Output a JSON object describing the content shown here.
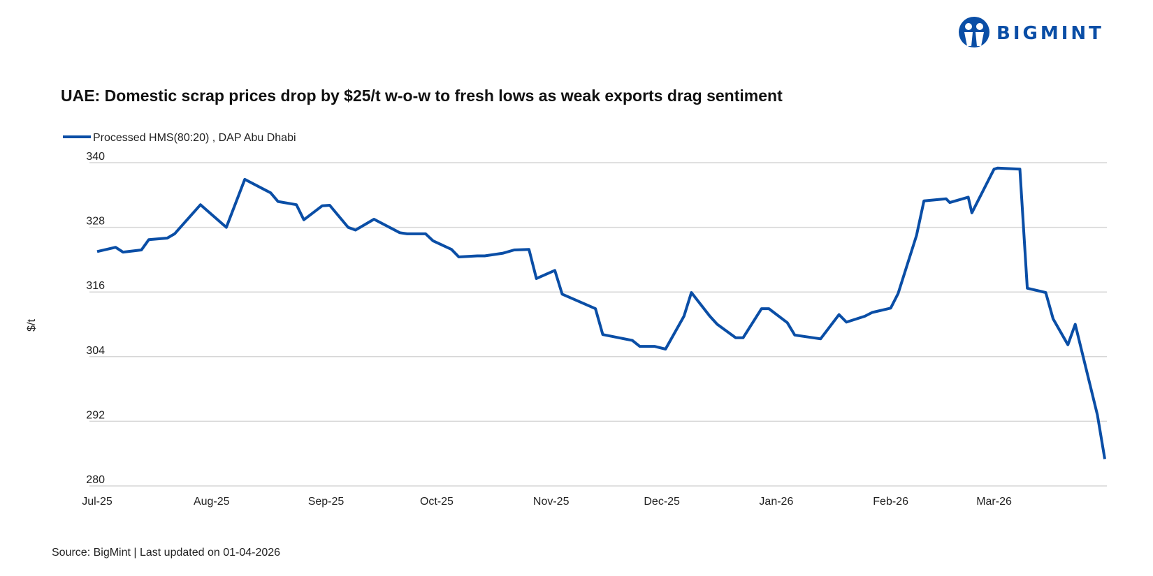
{
  "logo": {
    "text": "BIGMINT",
    "color": "#0a4ea6"
  },
  "chart_data": {
    "type": "line",
    "title": "UAE: Domestic scrap prices drop by $25/t w-o-w to fresh lows as weak exports drag sentiment",
    "ylabel": "$/t",
    "xlabel": "",
    "ylim": [
      280,
      340
    ],
    "yticks": [
      280,
      292,
      304,
      316,
      328,
      340
    ],
    "xlim": [
      "2025-07-01",
      "2026-03-31"
    ],
    "xticks": [
      {
        "date": "2025-07-01",
        "label": "Jul-25"
      },
      {
        "date": "2025-08-01",
        "label": "Aug-25"
      },
      {
        "date": "2025-09-01",
        "label": "Sep-25"
      },
      {
        "date": "2025-10-01",
        "label": "Oct-25"
      },
      {
        "date": "2025-11-01",
        "label": "Nov-25"
      },
      {
        "date": "2025-12-01",
        "label": "Dec-25"
      },
      {
        "date": "2026-01-01",
        "label": "Jan-26"
      },
      {
        "date": "2026-02-01",
        "label": "Feb-26"
      },
      {
        "date": "2026-03-01",
        "label": "Mar-26"
      }
    ],
    "grid": "horizontal",
    "legend_position": "top-left",
    "series": [
      {
        "name": "Processed HMS(80:20) , DAP Abu Dhabi",
        "color": "#0a4ea6",
        "points": [
          [
            "2025-07-01",
            323.5
          ],
          [
            "2025-07-06",
            324.3
          ],
          [
            "2025-07-08",
            323.4
          ],
          [
            "2025-07-13",
            323.8
          ],
          [
            "2025-07-15",
            325.7
          ],
          [
            "2025-07-20",
            326.0
          ],
          [
            "2025-07-22",
            326.8
          ],
          [
            "2025-07-29",
            332.2
          ],
          [
            "2025-08-05",
            328.0
          ],
          [
            "2025-08-10",
            336.9
          ],
          [
            "2025-08-17",
            334.4
          ],
          [
            "2025-08-19",
            332.8
          ],
          [
            "2025-08-24",
            332.2
          ],
          [
            "2025-08-26",
            329.4
          ],
          [
            "2025-08-31",
            332.0
          ],
          [
            "2025-09-02",
            332.1
          ],
          [
            "2025-09-07",
            328.0
          ],
          [
            "2025-09-09",
            327.5
          ],
          [
            "2025-09-14",
            329.5
          ],
          [
            "2025-09-21",
            327.0
          ],
          [
            "2025-09-23",
            326.8
          ],
          [
            "2025-09-28",
            326.8
          ],
          [
            "2025-09-30",
            325.5
          ],
          [
            "2025-10-05",
            323.9
          ],
          [
            "2025-10-07",
            322.5
          ],
          [
            "2025-10-12",
            322.7
          ],
          [
            "2025-10-14",
            322.7
          ],
          [
            "2025-10-19",
            323.2
          ],
          [
            "2025-10-22",
            323.8
          ],
          [
            "2025-10-26",
            323.9
          ],
          [
            "2025-10-28",
            318.5
          ],
          [
            "2025-11-02",
            320.0
          ],
          [
            "2025-11-04",
            315.6
          ],
          [
            "2025-11-13",
            312.9
          ],
          [
            "2025-11-15",
            308.1
          ],
          [
            "2025-11-23",
            307.0
          ],
          [
            "2025-11-25",
            305.9
          ],
          [
            "2025-11-29",
            305.9
          ],
          [
            "2025-12-02",
            305.4
          ],
          [
            "2025-12-07",
            311.5
          ],
          [
            "2025-12-09",
            315.9
          ],
          [
            "2025-12-14",
            311.5
          ],
          [
            "2025-12-16",
            310.0
          ],
          [
            "2025-12-21",
            307.5
          ],
          [
            "2025-12-23",
            307.5
          ],
          [
            "2025-12-28",
            312.9
          ],
          [
            "2025-12-30",
            312.9
          ],
          [
            "2026-01-04",
            310.3
          ],
          [
            "2026-01-06",
            308.0
          ],
          [
            "2026-01-13",
            307.3
          ],
          [
            "2026-01-18",
            311.8
          ],
          [
            "2026-01-20",
            310.4
          ],
          [
            "2026-01-25",
            311.5
          ],
          [
            "2026-01-27",
            312.2
          ],
          [
            "2026-02-01",
            313.0
          ],
          [
            "2026-02-03",
            315.7
          ],
          [
            "2026-02-08",
            326.5
          ],
          [
            "2026-02-10",
            332.9
          ],
          [
            "2026-02-16",
            333.3
          ],
          [
            "2026-02-17",
            332.6
          ],
          [
            "2026-02-22",
            333.6
          ],
          [
            "2026-02-23",
            330.7
          ],
          [
            "2026-03-01",
            338.8
          ],
          [
            "2026-03-02",
            339.0
          ],
          [
            "2026-03-08",
            338.8
          ],
          [
            "2026-03-10",
            316.7
          ],
          [
            "2026-03-15",
            315.9
          ],
          [
            "2026-03-17",
            311.0
          ],
          [
            "2026-03-21",
            306.2
          ],
          [
            "2026-03-23",
            310.0
          ],
          [
            "2026-03-29",
            293.2
          ],
          [
            "2026-03-31",
            285.0
          ]
        ]
      }
    ],
    "source": "Source: BigMint | Last updated on 01-04-2026"
  }
}
